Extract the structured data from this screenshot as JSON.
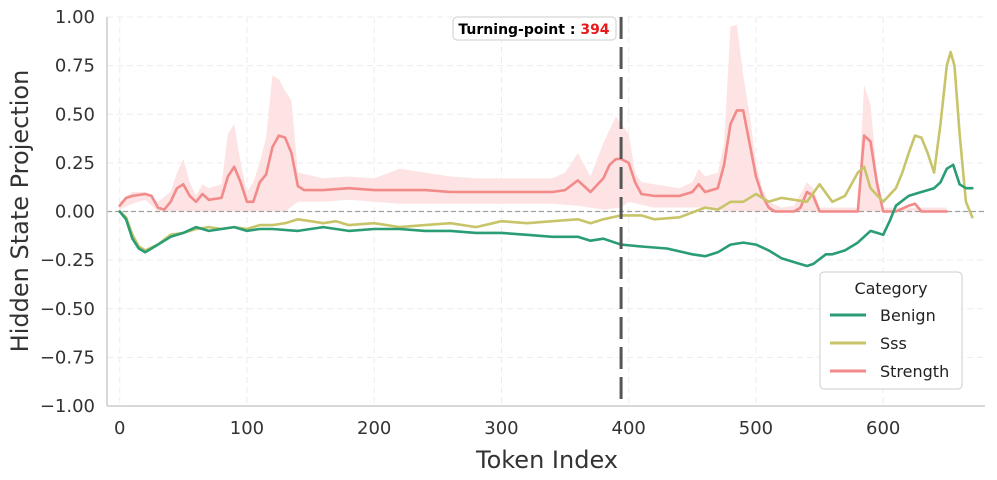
{
  "chart_data": {
    "type": "line",
    "xlabel": "Token Index",
    "ylabel": "Hidden State Projection",
    "xlim": [
      -10,
      680
    ],
    "ylim": [
      -1.0,
      1.0
    ],
    "xticks": [
      0,
      100,
      200,
      300,
      400,
      500,
      600
    ],
    "yticks": [
      -1.0,
      -0.75,
      -0.5,
      -0.25,
      0.0,
      0.25,
      0.5,
      0.75,
      1.0
    ],
    "ytick_labels": [
      "−1.00",
      "−0.75",
      "−0.50",
      "−0.25",
      "0.00",
      "0.25",
      "0.50",
      "0.75",
      "1.00"
    ],
    "grid": true,
    "zero_line": 0.0,
    "legend": {
      "title": "Category",
      "placement": "lower-right"
    },
    "turning_point": {
      "x": 394,
      "label": "Turning-point : ",
      "value": "394"
    },
    "series": [
      {
        "name": "Benign",
        "color": "#2a9d74",
        "points": [
          [
            0,
            0.0
          ],
          [
            5,
            -0.04
          ],
          [
            10,
            -0.14
          ],
          [
            15,
            -0.19
          ],
          [
            20,
            -0.21
          ],
          [
            30,
            -0.17
          ],
          [
            40,
            -0.13
          ],
          [
            50,
            -0.11
          ],
          [
            60,
            -0.08
          ],
          [
            70,
            -0.1
          ],
          [
            80,
            -0.09
          ],
          [
            90,
            -0.08
          ],
          [
            100,
            -0.1
          ],
          [
            110,
            -0.09
          ],
          [
            120,
            -0.09
          ],
          [
            140,
            -0.1
          ],
          [
            160,
            -0.08
          ],
          [
            180,
            -0.1
          ],
          [
            200,
            -0.09
          ],
          [
            220,
            -0.09
          ],
          [
            240,
            -0.1
          ],
          [
            260,
            -0.1
          ],
          [
            280,
            -0.11
          ],
          [
            300,
            -0.11
          ],
          [
            320,
            -0.12
          ],
          [
            340,
            -0.13
          ],
          [
            360,
            -0.13
          ],
          [
            370,
            -0.15
          ],
          [
            380,
            -0.14
          ],
          [
            394,
            -0.17
          ],
          [
            410,
            -0.18
          ],
          [
            430,
            -0.19
          ],
          [
            450,
            -0.22
          ],
          [
            460,
            -0.23
          ],
          [
            470,
            -0.21
          ],
          [
            480,
            -0.17
          ],
          [
            490,
            -0.16
          ],
          [
            500,
            -0.17
          ],
          [
            510,
            -0.2
          ],
          [
            520,
            -0.24
          ],
          [
            530,
            -0.26
          ],
          [
            540,
            -0.28
          ],
          [
            545,
            -0.27
          ],
          [
            555,
            -0.22
          ],
          [
            560,
            -0.22
          ],
          [
            570,
            -0.2
          ],
          [
            580,
            -0.16
          ],
          [
            590,
            -0.1
          ],
          [
            600,
            -0.12
          ],
          [
            605,
            -0.05
          ],
          [
            610,
            0.03
          ],
          [
            620,
            0.08
          ],
          [
            630,
            0.1
          ],
          [
            640,
            0.12
          ],
          [
            645,
            0.15
          ],
          [
            650,
            0.22
          ],
          [
            655,
            0.24
          ],
          [
            660,
            0.14
          ],
          [
            665,
            0.12
          ],
          [
            670,
            0.12
          ]
        ]
      },
      {
        "name": "Sss",
        "color": "#c8c46a",
        "points": [
          [
            0,
            0.0
          ],
          [
            5,
            -0.03
          ],
          [
            10,
            -0.12
          ],
          [
            15,
            -0.18
          ],
          [
            20,
            -0.2
          ],
          [
            30,
            -0.17
          ],
          [
            40,
            -0.12
          ],
          [
            50,
            -0.11
          ],
          [
            60,
            -0.09
          ],
          [
            70,
            -0.08
          ],
          [
            80,
            -0.09
          ],
          [
            90,
            -0.08
          ],
          [
            100,
            -0.09
          ],
          [
            110,
            -0.07
          ],
          [
            120,
            -0.07
          ],
          [
            130,
            -0.06
          ],
          [
            140,
            -0.04
          ],
          [
            150,
            -0.05
          ],
          [
            160,
            -0.06
          ],
          [
            170,
            -0.05
          ],
          [
            180,
            -0.07
          ],
          [
            200,
            -0.06
          ],
          [
            220,
            -0.08
          ],
          [
            240,
            -0.07
          ],
          [
            260,
            -0.06
          ],
          [
            280,
            -0.08
          ],
          [
            300,
            -0.05
          ],
          [
            320,
            -0.06
          ],
          [
            340,
            -0.05
          ],
          [
            360,
            -0.04
          ],
          [
            370,
            -0.06
          ],
          [
            380,
            -0.04
          ],
          [
            394,
            -0.02
          ],
          [
            410,
            -0.02
          ],
          [
            420,
            -0.04
          ],
          [
            440,
            -0.03
          ],
          [
            460,
            0.02
          ],
          [
            470,
            0.01
          ],
          [
            480,
            0.05
          ],
          [
            490,
            0.05
          ],
          [
            500,
            0.09
          ],
          [
            510,
            0.05
          ],
          [
            520,
            0.07
          ],
          [
            530,
            0.06
          ],
          [
            540,
            0.05
          ],
          [
            550,
            0.14
          ],
          [
            560,
            0.05
          ],
          [
            570,
            0.08
          ],
          [
            580,
            0.2
          ],
          [
            585,
            0.23
          ],
          [
            590,
            0.12
          ],
          [
            600,
            0.05
          ],
          [
            610,
            0.12
          ],
          [
            615,
            0.2
          ],
          [
            620,
            0.3
          ],
          [
            625,
            0.39
          ],
          [
            630,
            0.38
          ],
          [
            635,
            0.3
          ],
          [
            640,
            0.2
          ],
          [
            645,
            0.45
          ],
          [
            650,
            0.75
          ],
          [
            653,
            0.82
          ],
          [
            656,
            0.75
          ],
          [
            660,
            0.4
          ],
          [
            665,
            0.05
          ],
          [
            670,
            -0.03
          ]
        ]
      },
      {
        "name": "Strength",
        "color": "#f28a8a",
        "points": [
          [
            0,
            0.03
          ],
          [
            5,
            0.07
          ],
          [
            10,
            0.08
          ],
          [
            20,
            0.09
          ],
          [
            25,
            0.08
          ],
          [
            30,
            0.02
          ],
          [
            35,
            0.01
          ],
          [
            40,
            0.05
          ],
          [
            45,
            0.12
          ],
          [
            50,
            0.14
          ],
          [
            55,
            0.08
          ],
          [
            60,
            0.05
          ],
          [
            65,
            0.09
          ],
          [
            70,
            0.06
          ],
          [
            80,
            0.07
          ],
          [
            85,
            0.18
          ],
          [
            90,
            0.23
          ],
          [
            95,
            0.15
          ],
          [
            100,
            0.05
          ],
          [
            105,
            0.05
          ],
          [
            110,
            0.15
          ],
          [
            115,
            0.19
          ],
          [
            120,
            0.33
          ],
          [
            125,
            0.39
          ],
          [
            130,
            0.38
          ],
          [
            135,
            0.3
          ],
          [
            140,
            0.13
          ],
          [
            145,
            0.11
          ],
          [
            160,
            0.11
          ],
          [
            180,
            0.12
          ],
          [
            200,
            0.11
          ],
          [
            220,
            0.11
          ],
          [
            240,
            0.11
          ],
          [
            260,
            0.1
          ],
          [
            280,
            0.1
          ],
          [
            300,
            0.1
          ],
          [
            320,
            0.1
          ],
          [
            340,
            0.1
          ],
          [
            350,
            0.11
          ],
          [
            360,
            0.16
          ],
          [
            370,
            0.1
          ],
          [
            380,
            0.17
          ],
          [
            385,
            0.24
          ],
          [
            390,
            0.27
          ],
          [
            394,
            0.27
          ],
          [
            400,
            0.25
          ],
          [
            405,
            0.15
          ],
          [
            410,
            0.09
          ],
          [
            420,
            0.08
          ],
          [
            440,
            0.08
          ],
          [
            450,
            0.1
          ],
          [
            455,
            0.14
          ],
          [
            460,
            0.1
          ],
          [
            470,
            0.12
          ],
          [
            475,
            0.24
          ],
          [
            480,
            0.45
          ],
          [
            485,
            0.52
          ],
          [
            490,
            0.52
          ],
          [
            495,
            0.35
          ],
          [
            500,
            0.18
          ],
          [
            505,
            0.08
          ],
          [
            510,
            0.02
          ],
          [
            515,
            0.0
          ],
          [
            520,
            0.0
          ],
          [
            530,
            0.0
          ],
          [
            535,
            0.02
          ],
          [
            540,
            0.1
          ],
          [
            545,
            0.08
          ],
          [
            550,
            0.0
          ],
          [
            560,
            0.0
          ],
          [
            570,
            0.0
          ],
          [
            580,
            0.0
          ],
          [
            585,
            0.39
          ],
          [
            590,
            0.36
          ],
          [
            595,
            0.15
          ],
          [
            600,
            0.0
          ],
          [
            610,
            0.0
          ],
          [
            620,
            0.03
          ],
          [
            625,
            0.04
          ],
          [
            630,
            0.0
          ],
          [
            640,
            0.0
          ],
          [
            650,
            0.0
          ]
        ]
      }
    ],
    "band": {
      "series": "Strength",
      "color": "#fde3e3",
      "upper": [
        [
          0,
          0.05
        ],
        [
          10,
          0.1
        ],
        [
          20,
          0.1
        ],
        [
          30,
          0.05
        ],
        [
          40,
          0.1
        ],
        [
          45,
          0.2
        ],
        [
          50,
          0.27
        ],
        [
          55,
          0.15
        ],
        [
          60,
          0.08
        ],
        [
          65,
          0.14
        ],
        [
          70,
          0.12
        ],
        [
          80,
          0.14
        ],
        [
          85,
          0.4
        ],
        [
          90,
          0.45
        ],
        [
          95,
          0.25
        ],
        [
          100,
          0.1
        ],
        [
          105,
          0.15
        ],
        [
          110,
          0.25
        ],
        [
          115,
          0.38
        ],
        [
          120,
          0.7
        ],
        [
          125,
          0.68
        ],
        [
          130,
          0.62
        ],
        [
          135,
          0.57
        ],
        [
          140,
          0.2
        ],
        [
          160,
          0.17
        ],
        [
          180,
          0.18
        ],
        [
          200,
          0.17
        ],
        [
          220,
          0.22
        ],
        [
          240,
          0.2
        ],
        [
          260,
          0.18
        ],
        [
          280,
          0.17
        ],
        [
          300,
          0.17
        ],
        [
          320,
          0.17
        ],
        [
          340,
          0.17
        ],
        [
          350,
          0.2
        ],
        [
          360,
          0.3
        ],
        [
          370,
          0.18
        ],
        [
          380,
          0.35
        ],
        [
          385,
          0.42
        ],
        [
          390,
          0.49
        ],
        [
          394,
          0.45
        ],
        [
          400,
          0.4
        ],
        [
          405,
          0.2
        ],
        [
          410,
          0.15
        ],
        [
          420,
          0.14
        ],
        [
          440,
          0.12
        ],
        [
          450,
          0.15
        ],
        [
          455,
          0.22
        ],
        [
          460,
          0.18
        ],
        [
          470,
          0.2
        ],
        [
          475,
          0.35
        ],
        [
          480,
          0.95
        ],
        [
          485,
          0.96
        ],
        [
          490,
          0.7
        ],
        [
          495,
          0.5
        ],
        [
          500,
          0.25
        ],
        [
          505,
          0.12
        ],
        [
          510,
          0.05
        ],
        [
          520,
          0.02
        ],
        [
          530,
          0.03
        ],
        [
          540,
          0.15
        ],
        [
          545,
          0.12
        ],
        [
          550,
          0.02
        ],
        [
          580,
          0.02
        ],
        [
          585,
          0.65
        ],
        [
          590,
          0.55
        ],
        [
          595,
          0.2
        ],
        [
          600,
          0.02
        ],
        [
          650,
          0.02
        ]
      ],
      "lower": [
        [
          0,
          0.01
        ],
        [
          10,
          0.04
        ],
        [
          20,
          0.06
        ],
        [
          30,
          0.0
        ],
        [
          40,
          0.0
        ],
        [
          50,
          0.0
        ],
        [
          60,
          0.0
        ],
        [
          70,
          0.0
        ],
        [
          80,
          0.0
        ],
        [
          90,
          0.0
        ],
        [
          100,
          0.0
        ],
        [
          110,
          0.0
        ],
        [
          120,
          0.0
        ],
        [
          130,
          0.0
        ],
        [
          140,
          0.05
        ],
        [
          160,
          0.05
        ],
        [
          180,
          0.06
        ],
        [
          200,
          0.05
        ],
        [
          220,
          0.04
        ],
        [
          240,
          0.04
        ],
        [
          260,
          0.04
        ],
        [
          280,
          0.04
        ],
        [
          300,
          0.04
        ],
        [
          320,
          0.04
        ],
        [
          340,
          0.04
        ],
        [
          360,
          0.03
        ],
        [
          380,
          0.01
        ],
        [
          394,
          0.02
        ],
        [
          400,
          0.05
        ],
        [
          420,
          0.02
        ],
        [
          440,
          0.02
        ],
        [
          460,
          0.02
        ],
        [
          480,
          0.0
        ],
        [
          500,
          0.0
        ],
        [
          520,
          0.0
        ],
        [
          540,
          0.0
        ],
        [
          560,
          0.0
        ],
        [
          580,
          0.0
        ],
        [
          600,
          0.0
        ],
        [
          650,
          0.0
        ]
      ]
    }
  }
}
